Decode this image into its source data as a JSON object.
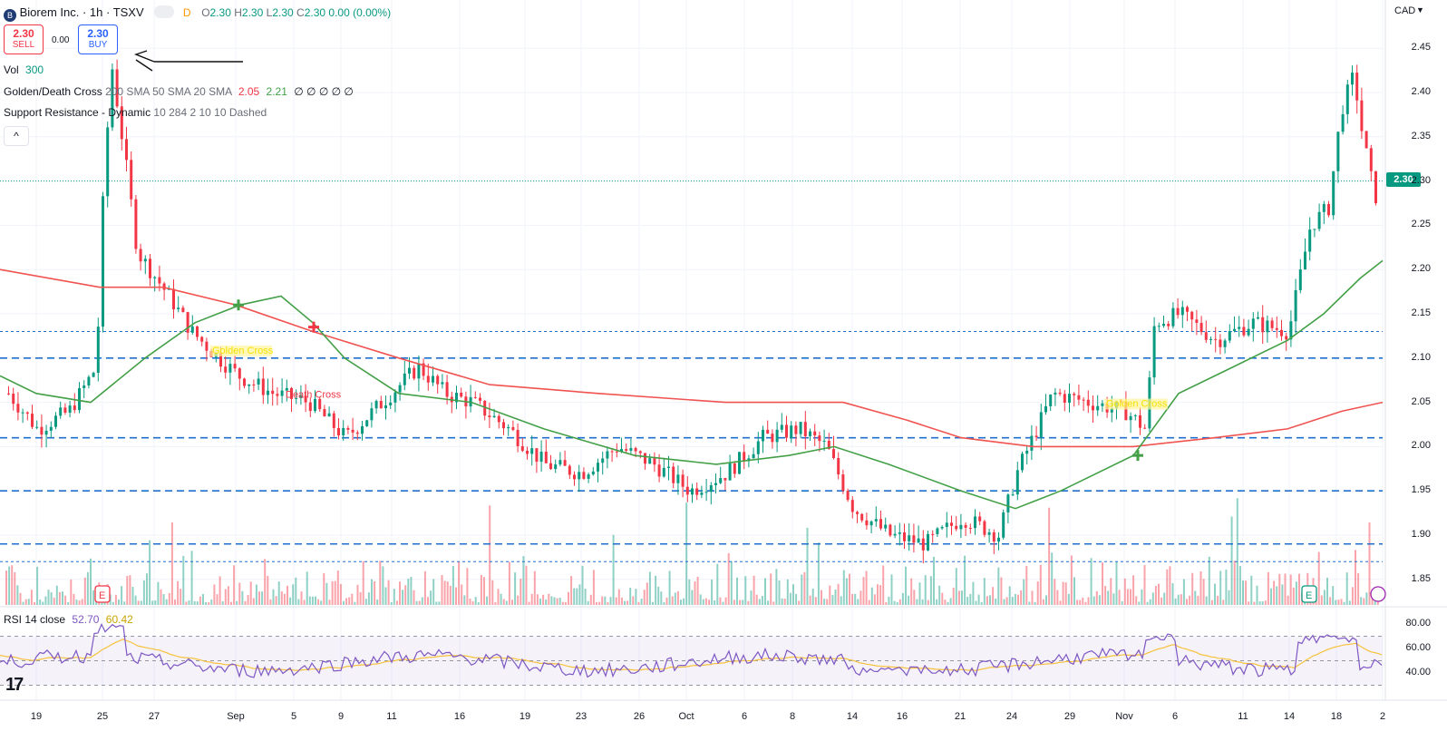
{
  "header": {
    "symbol_title": "Biorem Inc. · 1h · TSXV",
    "market_status": "D",
    "ohlc": [
      {
        "label": "O",
        "value": "2.30"
      },
      {
        "label": "H",
        "value": "2.30"
      },
      {
        "label": "L",
        "value": "2.30"
      },
      {
        "label": "C",
        "value": "2.30"
      },
      {
        "label": "",
        "value": "0.00 (0.00%)"
      }
    ],
    "currency": "CAD"
  },
  "trade": {
    "sell_price": "2.30",
    "sell_label": "SELL",
    "spread": "0.00",
    "buy_price": "2.30",
    "buy_label": "BUY"
  },
  "indicators": {
    "vol_label": "Vol",
    "vol_value": "300",
    "golden_label": "Golden/Death Cross",
    "golden_params": "200 SMA 50 SMA 20 SMA",
    "golden_v1": "2.05",
    "golden_v2": "2.21",
    "golden_extra": "∅ ∅ ∅ ∅ ∅",
    "sr_label": "Support Resistance - Dynamic",
    "sr_params": "10 284 2 10 10 Dashed",
    "rsi_label": "RSI 14 close",
    "rsi_v1": "52.70",
    "rsi_v2": "60.42"
  },
  "annotations": {
    "death_cross": "Death Cross",
    "golden_cross": "Golden Cross"
  },
  "price_axis": [
    "2.45",
    "2.40",
    "2.35",
    "2.30",
    "2.25",
    "2.20",
    "2.15",
    "2.10",
    "2.05",
    "2.00",
    "1.95",
    "1.90",
    "1.85"
  ],
  "rsi_axis": [
    "80.00",
    "60.00",
    "40.00"
  ],
  "time_axis": [
    "19",
    "25",
    "27",
    "Sep",
    "5",
    "9",
    "11",
    "16",
    "19",
    "23",
    "26",
    "Oct",
    "6",
    "8",
    "14",
    "16",
    "21",
    "24",
    "29",
    "Nov",
    "6",
    "11",
    "14",
    "18",
    "2"
  ],
  "last_price": "2.30",
  "earnings_marker": "E",
  "colors": {
    "up": "#089981",
    "down": "#f23645",
    "sma200": "#f05350",
    "sma50": "#43a047",
    "sr": "#1e6fd0",
    "rsi": "#7e57c2",
    "rsi_ma": "#f7c23b"
  },
  "chart_data": {
    "type": "candlestick",
    "note_series": [
      {
        "name": "200 SMA",
        "approx_values": [
          2.2,
          2.16,
          2.13,
          2.09,
          2.06,
          2.05,
          2.01,
          2.0,
          2.0,
          2.02,
          2.05
        ]
      },
      {
        "name": "50 SMA",
        "approx_values": [
          2.08,
          2.05,
          2.17,
          2.13,
          2.06,
          2.01,
          1.98,
          2.0,
          1.93,
          1.99,
          2.1,
          2.21
        ]
      }
    ],
    "price_range": [
      1.82,
      2.48
    ],
    "support_resistance_levels": [
      2.13,
      2.1,
      2.01,
      1.95,
      1.89,
      1.87
    ],
    "rsi_range": [
      30,
      90
    ],
    "rsi_levels": [
      70,
      50,
      30
    ]
  }
}
